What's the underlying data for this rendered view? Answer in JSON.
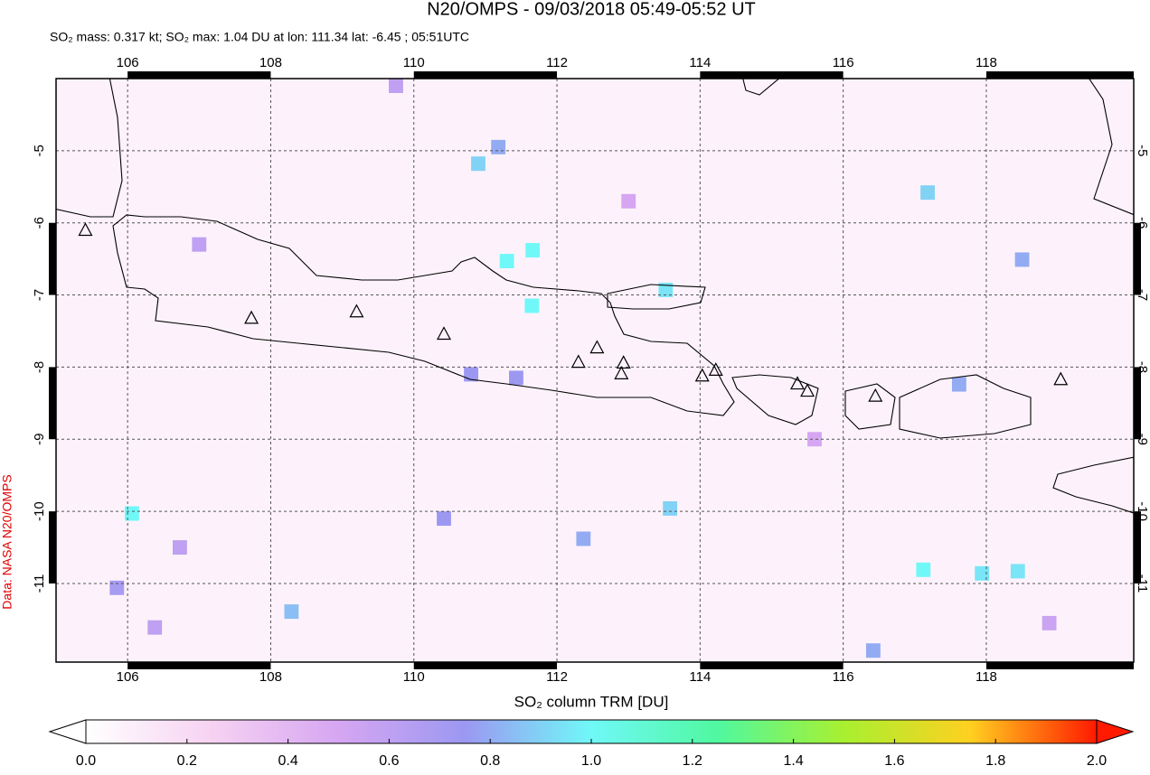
{
  "chart_data": {
    "type": "map",
    "title": "N20/OMPS - 09/03/2018 05:49-05:52 UT",
    "subtitle": "SO₂ mass: 0.317 kt; SO₂ max: 1.04 DU at lon: 111.34 lat: -6.45 ; 05:51UTC",
    "source": "Data: NASA N20/OMPS",
    "xlim": [
      105.0,
      120.06
    ],
    "ylim": [
      -12.09,
      -4.0
    ],
    "xticks": [
      106,
      108,
      110,
      112,
      114,
      116,
      118
    ],
    "yticks": [
      -5,
      -6,
      -7,
      -8,
      -9,
      -10,
      -11
    ],
    "grid": true,
    "volcanoes": [
      {
        "lon": 105.41,
        "lat": -6.11
      },
      {
        "lon": 107.73,
        "lat": -7.33
      },
      {
        "lon": 109.2,
        "lat": -7.24
      },
      {
        "lon": 110.42,
        "lat": -7.55
      },
      {
        "lon": 112.3,
        "lat": -7.94
      },
      {
        "lon": 112.56,
        "lat": -7.74
      },
      {
        "lon": 112.93,
        "lat": -7.95
      },
      {
        "lon": 112.9,
        "lat": -8.1
      },
      {
        "lon": 114.03,
        "lat": -8.13
      },
      {
        "lon": 114.22,
        "lat": -8.05
      },
      {
        "lon": 115.36,
        "lat": -8.24
      },
      {
        "lon": 115.5,
        "lat": -8.34
      },
      {
        "lon": 116.45,
        "lat": -8.41
      },
      {
        "lon": 119.04,
        "lat": -8.18
      }
    ],
    "pixels": [
      {
        "lon": 111.3,
        "lat": -6.53,
        "value": 1.0
      },
      {
        "lon": 111.66,
        "lat": -6.38,
        "value": 1.0
      },
      {
        "lon": 111.65,
        "lat": -7.15,
        "value": 1.0
      },
      {
        "lon": 110.9,
        "lat": -5.18,
        "value": 0.9
      },
      {
        "lon": 111.18,
        "lat": -4.95,
        "value": 0.8
      },
      {
        "lon": 113.52,
        "lat": -6.93,
        "value": 0.95
      },
      {
        "lon": 117.18,
        "lat": -5.58,
        "value": 0.9
      },
      {
        "lon": 118.5,
        "lat": -6.51,
        "value": 0.8
      },
      {
        "lon": 117.62,
        "lat": -8.24,
        "value": 0.8
      },
      {
        "lon": 113.58,
        "lat": -9.96,
        "value": 0.9
      },
      {
        "lon": 117.12,
        "lat": -10.81,
        "value": 1.0
      },
      {
        "lon": 117.94,
        "lat": -10.86,
        "value": 0.95
      },
      {
        "lon": 118.44,
        "lat": -10.83,
        "value": 0.95
      },
      {
        "lon": 108.29,
        "lat": -11.39,
        "value": 0.85
      },
      {
        "lon": 116.42,
        "lat": -11.93,
        "value": 0.8
      },
      {
        "lon": 112.37,
        "lat": -10.38,
        "value": 0.8
      },
      {
        "lon": 110.42,
        "lat": -10.1,
        "value": 0.75
      },
      {
        "lon": 110.8,
        "lat": -8.1,
        "value": 0.75
      },
      {
        "lon": 111.43,
        "lat": -8.15,
        "value": 0.75
      },
      {
        "lon": 105.85,
        "lat": -11.06,
        "value": 0.7
      },
      {
        "lon": 106.38,
        "lat": -11.61,
        "value": 0.6
      },
      {
        "lon": 118.88,
        "lat": -11.55,
        "value": 0.55
      },
      {
        "lon": 106.06,
        "lat": -10.03,
        "value": 1.0
      },
      {
        "lon": 106.73,
        "lat": -10.5,
        "value": 0.6
      },
      {
        "lon": 109.75,
        "lat": -4.1,
        "value": 0.6
      },
      {
        "lon": 107.0,
        "lat": -6.3,
        "value": 0.6
      },
      {
        "lon": 115.6,
        "lat": -9.0,
        "value": 0.5
      },
      {
        "lon": 113.0,
        "lat": -5.7,
        "value": 0.5
      }
    ],
    "colorbar": {
      "label": "SO₂ column TRM [DU]",
      "clim": [
        0.0,
        2.0
      ],
      "colormap": [
        "#ffffff",
        "#f6d2f2",
        "#d6a6f2",
        "#9c98f2",
        "#70f8f8",
        "#50f8a0",
        "#a8f030",
        "#ffd020",
        "#ff1a00"
      ],
      "ticks": [
        {
          "value": 0.0,
          "label": "0.0"
        },
        {
          "value": 0.2,
          "label": "0.2"
        },
        {
          "value": 0.4,
          "label": "0.4"
        },
        {
          "value": 0.6,
          "label": "0.6"
        },
        {
          "value": 0.8,
          "label": "0.8"
        },
        {
          "value": 1.0,
          "label": "1.0"
        },
        {
          "value": 1.2,
          "label": "1.2"
        },
        {
          "value": 1.4,
          "label": "1.4"
        },
        {
          "value": 1.6,
          "label": "1.6"
        },
        {
          "value": 1.8,
          "label": "1.8"
        },
        {
          "value": 2.0,
          "label": "2.0"
        }
      ]
    }
  }
}
